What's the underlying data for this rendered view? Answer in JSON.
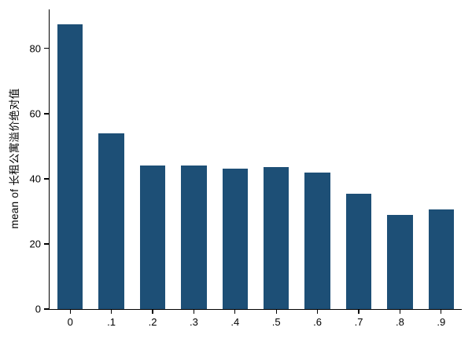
{
  "chart_data": {
    "type": "bar",
    "categories": [
      "0",
      ".1",
      ".2",
      ".3",
      ".4",
      ".5",
      ".6",
      ".7",
      ".8",
      ".9"
    ],
    "values": [
      87.5,
      54,
      44,
      44,
      43,
      43.5,
      42,
      35.5,
      29,
      30.5
    ],
    "title": "",
    "xlabel": "",
    "ylabel": "mean of 长租公寓溢价绝对值",
    "ylim": [
      0,
      92
    ],
    "yticks": [
      0,
      20,
      40,
      60,
      80
    ],
    "bar_color": "#1d4f76",
    "axis_color": "#000000",
    "grid": false,
    "legend": "none"
  }
}
